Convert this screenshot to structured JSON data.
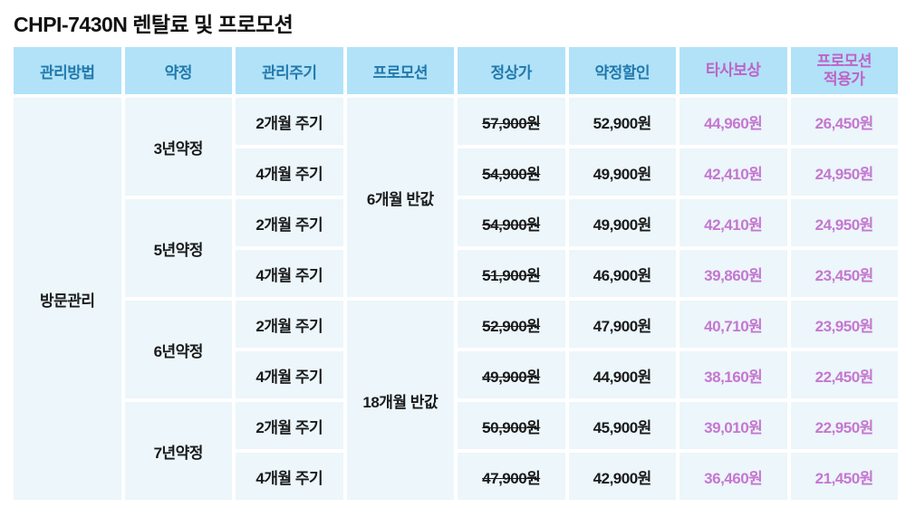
{
  "title": "CHPI-7430N 렌탈료 및 프로모션",
  "chart_data": {
    "type": "table",
    "title": "CHPI-7430N 렌탈료 및 프로모션",
    "columns": [
      "관리방법",
      "약정",
      "관리주기",
      "프로모션",
      "정상가",
      "약정할인",
      "타사보상",
      "프로모션\n적용가"
    ],
    "row_groups": {
      "management_method": "방문관리",
      "contracts": [
        "3년약정",
        "5년약정",
        "6년약정",
        "7년약정"
      ],
      "promotions": [
        "6개월 반값",
        "18개월 반값"
      ]
    },
    "rows": [
      {
        "contract": "3년약정",
        "cycle": "2개월 주기",
        "promotion": "6개월 반값",
        "regular_price": "57,900원",
        "contract_discount": "52,900원",
        "tradein_reward": "44,960원",
        "promo_price": "26,450원"
      },
      {
        "contract": "3년약정",
        "cycle": "4개월 주기",
        "promotion": "6개월 반값",
        "regular_price": "54,900원",
        "contract_discount": "49,900원",
        "tradein_reward": "42,410원",
        "promo_price": "24,950원"
      },
      {
        "contract": "5년약정",
        "cycle": "2개월 주기",
        "promotion": "6개월 반값",
        "regular_price": "54,900원",
        "contract_discount": "49,900원",
        "tradein_reward": "42,410원",
        "promo_price": "24,950원"
      },
      {
        "contract": "5년약정",
        "cycle": "4개월 주기",
        "promotion": "6개월 반값",
        "regular_price": "51,900원",
        "contract_discount": "46,900원",
        "tradein_reward": "39,860원",
        "promo_price": "23,450원"
      },
      {
        "contract": "6년약정",
        "cycle": "2개월 주기",
        "promotion": "18개월 반값",
        "regular_price": "52,900원",
        "contract_discount": "47,900원",
        "tradein_reward": "40,710원",
        "promo_price": "23,950원"
      },
      {
        "contract": "6년약정",
        "cycle": "4개월 주기",
        "promotion": "18개월 반값",
        "regular_price": "49,900원",
        "contract_discount": "44,900원",
        "tradein_reward": "38,160원",
        "promo_price": "22,450원"
      },
      {
        "contract": "7년약정",
        "cycle": "2개월 주기",
        "promotion": "18개월 반값",
        "regular_price": "50,900원",
        "contract_discount": "45,900원",
        "tradein_reward": "39,010원",
        "promo_price": "22,950원"
      },
      {
        "contract": "7년약정",
        "cycle": "4개월 주기",
        "promotion": "18개월 반값",
        "regular_price": "47,900원",
        "contract_discount": "42,900원",
        "tradein_reward": "36,460원",
        "promo_price": "21,450원"
      }
    ],
    "style_notes": "regular_price values are shown struck through"
  },
  "colors": {
    "header_bg": "#B1E2F8",
    "header_text_blue": "#2279AC",
    "header_text_pink": "#BE63C8",
    "cell_bg": "#ECF6FB",
    "data_text": "#1A1A1A",
    "data_text_pink": "#C577CF",
    "gap": "#FFFFFF"
  }
}
